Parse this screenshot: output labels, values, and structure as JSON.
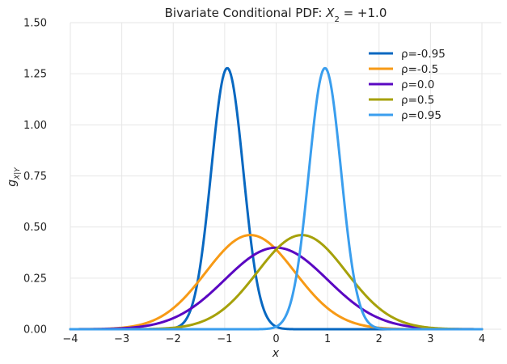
{
  "chart_data": {
    "type": "line",
    "title": "Bivariate Conditional PDF: X₂ = +1.0",
    "title_parts": {
      "prefix": "Bivariate Conditional PDF: ",
      "var": "X",
      "sub": "2",
      "suffix": " = +1.0"
    },
    "xlabel": "x",
    "ylabel_parts": {
      "base": "g",
      "sub": "X|Y"
    },
    "xlim": [
      -4,
      4
    ],
    "ylim": [
      0,
      1.5
    ],
    "xticks": [
      "−4",
      "−3",
      "−2",
      "−1",
      "0",
      "1",
      "2",
      "3",
      "4"
    ],
    "xtick_values": [
      -4,
      -3,
      -2,
      -1,
      0,
      1,
      2,
      3,
      4
    ],
    "yticks": [
      "0.00",
      "0.25",
      "0.50",
      "0.75",
      "1.00",
      "1.25",
      "1.50"
    ],
    "ytick_values": [
      0,
      0.25,
      0.5,
      0.75,
      1.0,
      1.25,
      1.5
    ],
    "grid": true,
    "legend_position": "top-right",
    "conditioning_value": 1.0,
    "series": [
      {
        "name": "ρ=-0.95",
        "rho": -0.95,
        "color": "#0868c1"
      },
      {
        "name": "ρ=-0.5",
        "rho": -0.5,
        "color": "#f79a16"
      },
      {
        "name": "ρ=0.0",
        "rho": 0.0,
        "color": "#5a07c2"
      },
      {
        "name": "ρ=0.5",
        "rho": 0.5,
        "color": "#a6a10a"
      },
      {
        "name": "ρ=0.95",
        "rho": 0.95,
        "color": "#3a9eee"
      }
    ]
  }
}
